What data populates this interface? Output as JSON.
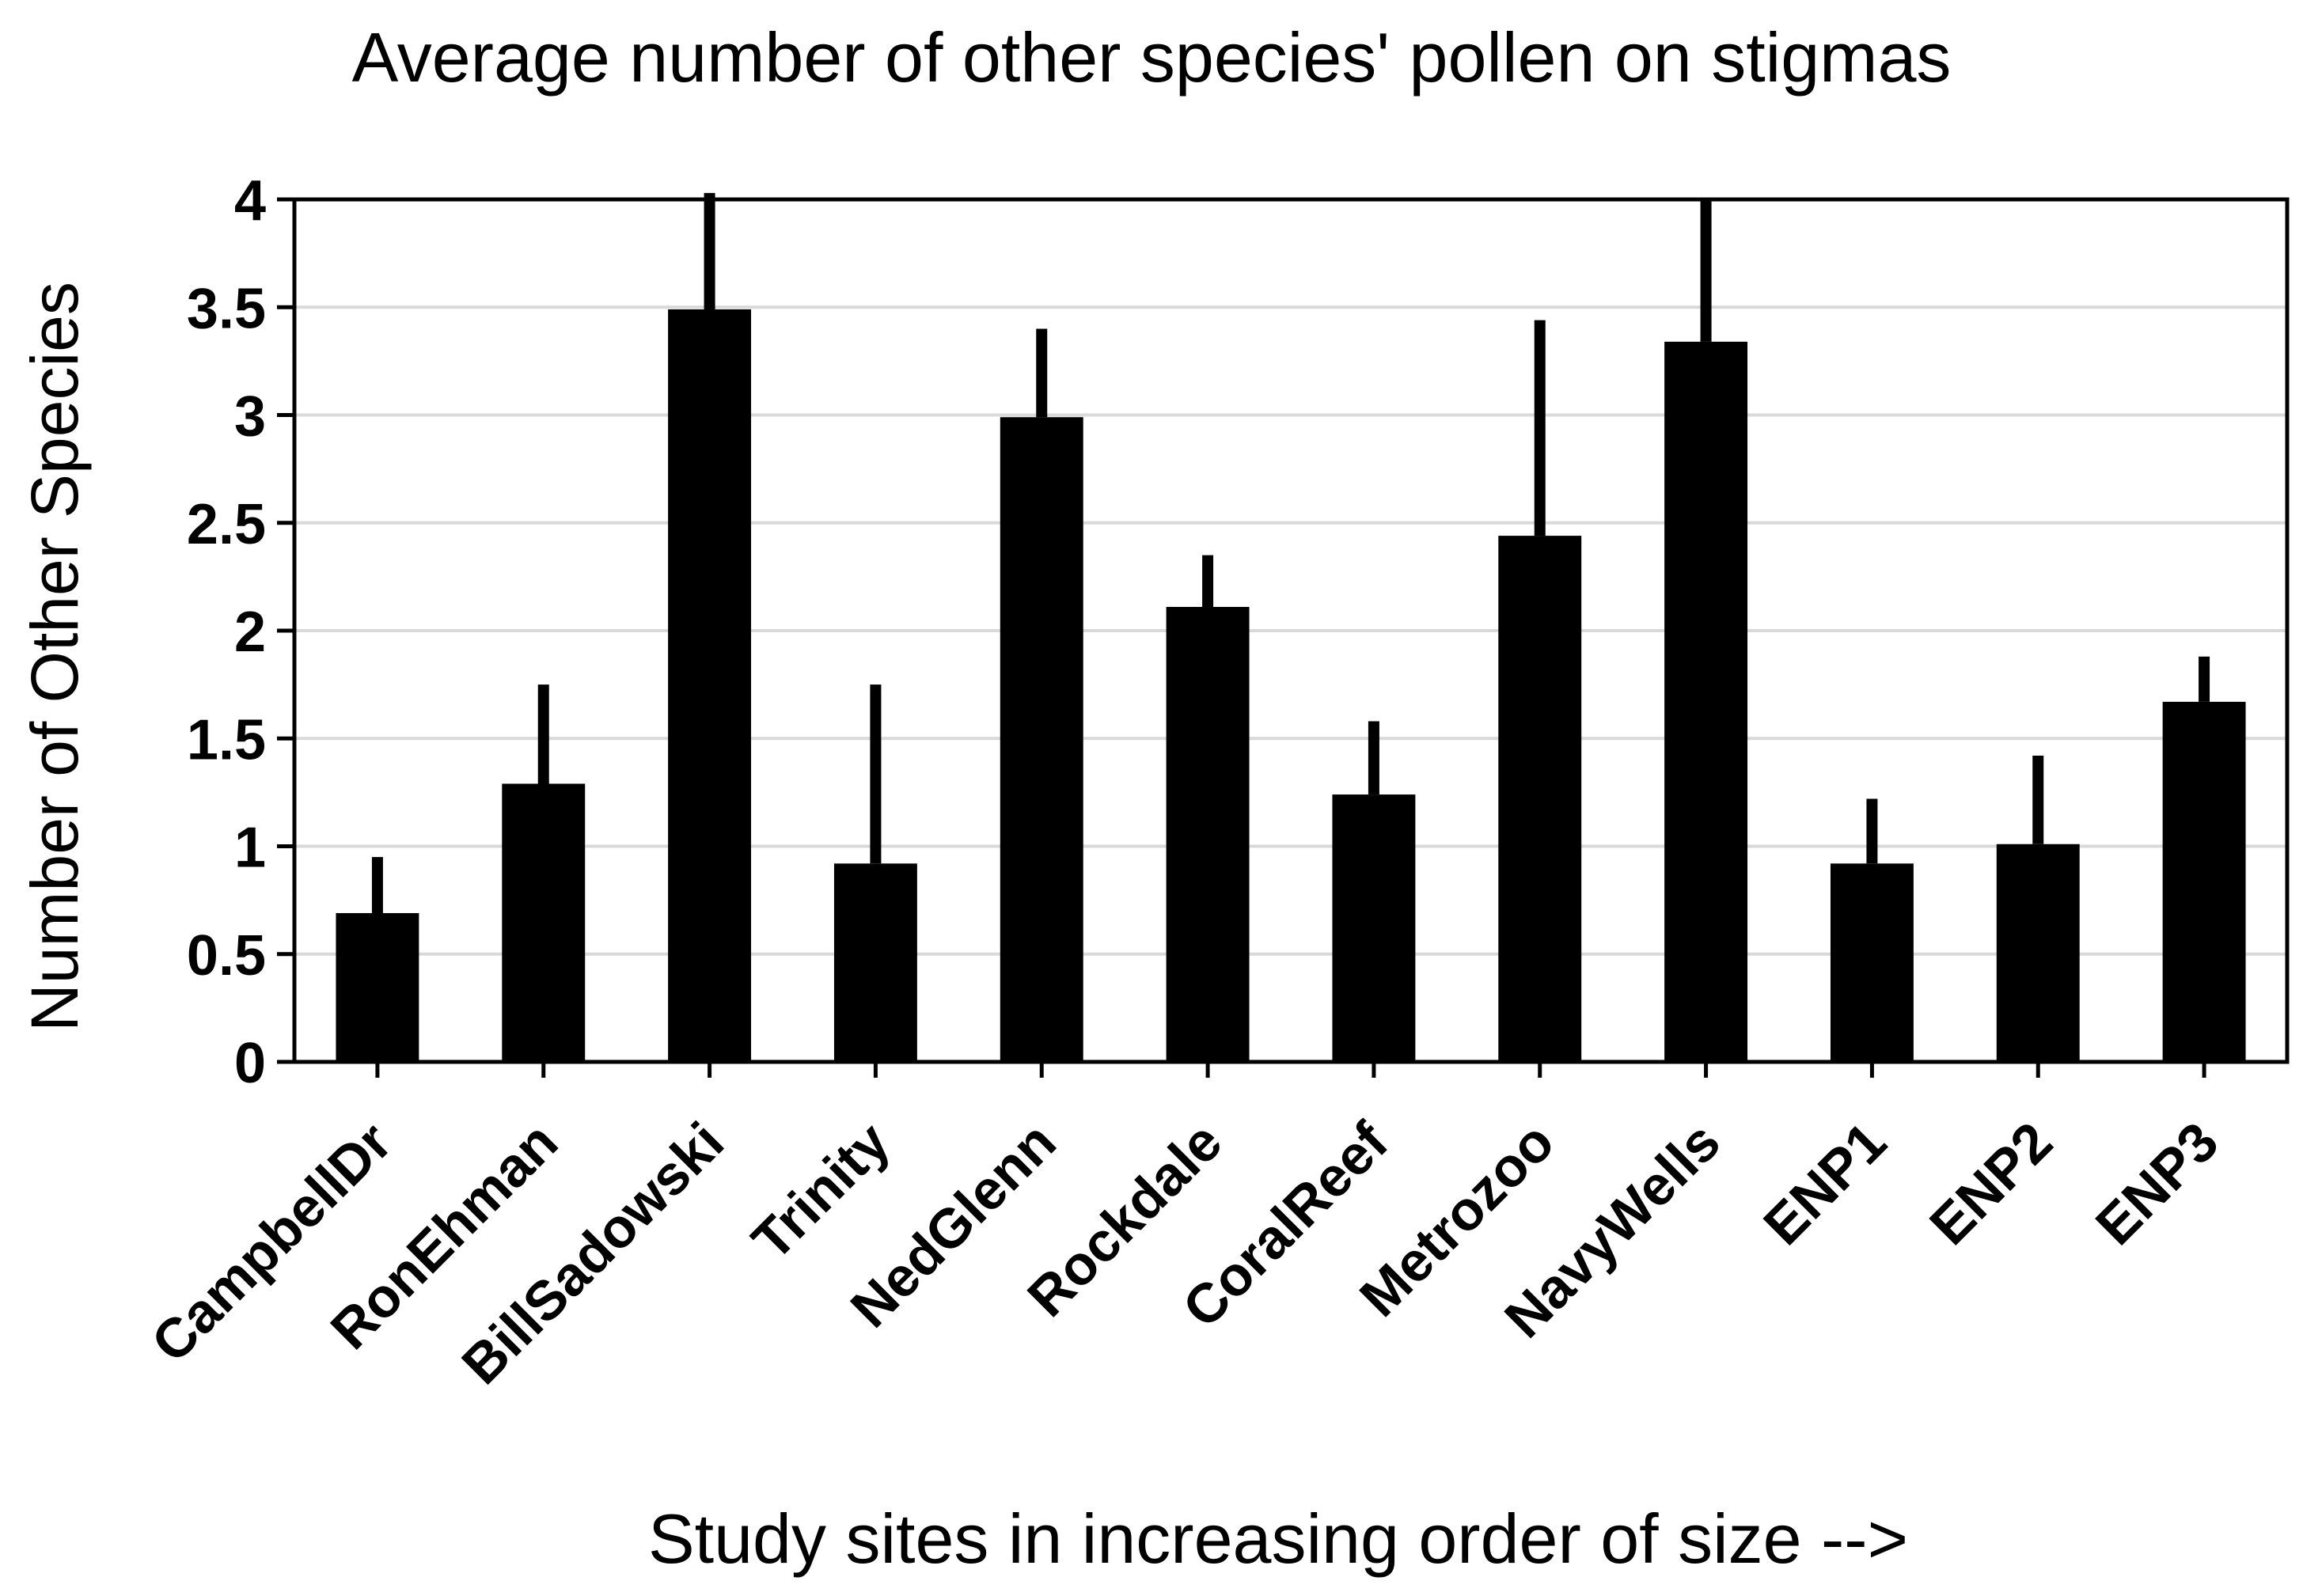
{
  "chart_data": {
    "type": "bar",
    "title": "Average number of other species' pollen on stigmas",
    "xlabel": "Study sites in increasing order of size -->",
    "ylabel": "Number of Other Species",
    "ylim": [
      0,
      4
    ],
    "yticks": [
      0,
      0.5,
      1,
      1.5,
      2,
      2.5,
      3,
      3.5,
      4
    ],
    "ytick_labels": [
      "0",
      "0.5",
      "1",
      "1.5",
      "2",
      "2.5",
      "3",
      "3.5",
      "4"
    ],
    "grid": true,
    "legend": "none",
    "bar_color": "#000000",
    "grid_color": "#d9d9d9",
    "categories": [
      "CampbellDr",
      "RonEhman",
      "BillSadowski",
      "Trinity",
      "NedGlenn",
      "Rockdale",
      "CoralReef",
      "Metrozoo",
      "NavyWells",
      "ENP1",
      "ENP2",
      "ENP3"
    ],
    "values": [
      0.69,
      1.29,
      3.49,
      0.92,
      2.99,
      2.11,
      1.24,
      2.44,
      3.34,
      0.92,
      1.01,
      1.67
    ],
    "error_upper": [
      0.95,
      1.75,
      4.03,
      1.75,
      3.4,
      2.35,
      1.58,
      3.44,
      4.0,
      1.22,
      1.42,
      1.88
    ]
  }
}
